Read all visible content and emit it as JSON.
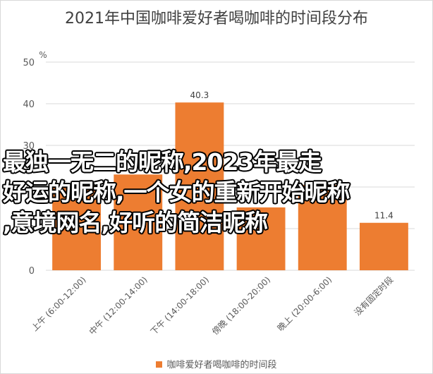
{
  "title": "2021年中国咖啡爱好者喝咖啡的时间段分布",
  "overlay_text": "最独一无二的昵称,2023年最走\n好运的昵称,一个女的重新开始昵称\n,意境网名,好听的简洁昵称",
  "colors": {
    "bar": "#ED7D31",
    "grid": "#D9D9D9",
    "text": "#595959"
  },
  "chart_data": {
    "type": "bar",
    "unit_label": "%",
    "categories": [
      "上午 (6:00-12:00)",
      "中午 (12:00-14:00)",
      "下午 (14:00-18:00)",
      "傍晚 (18:00-20:00)",
      "晚上 (20:00-6:00)",
      "没有固定时段"
    ],
    "series": [
      {
        "name": "咖啡爱好者喝咖啡的时间段",
        "values": [
          20.5,
          23,
          40.3,
          15.1,
          20.5,
          11.4
        ]
      }
    ],
    "data_labels": [
      "",
      "",
      "40.3",
      "",
      "",
      "11.4"
    ],
    "ylim": [
      0,
      50
    ],
    "yticks": [
      0,
      10,
      20,
      30,
      40,
      50
    ],
    "grid": true,
    "legend": "bottom"
  }
}
